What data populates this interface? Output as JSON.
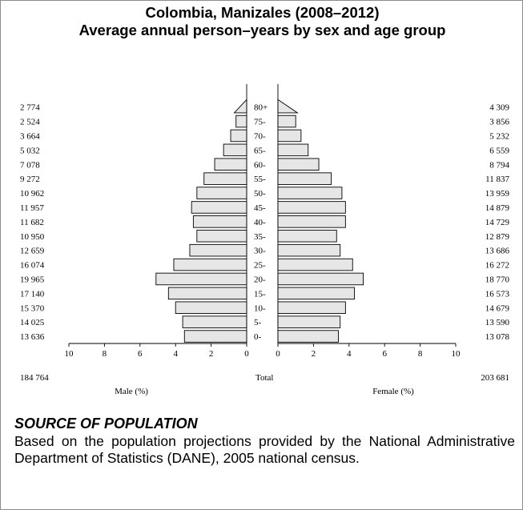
{
  "chart_data": {
    "type": "bar",
    "subtype": "population-pyramid",
    "title": "Colombia, Manizales (2008–2012)",
    "subtitle": "Average annual person–years by sex and age group",
    "age_groups": [
      "0-",
      "5-",
      "10-",
      "15-",
      "20-",
      "25-",
      "30-",
      "35-",
      "40-",
      "45-",
      "50-",
      "55-",
      "60-",
      "65-",
      "70-",
      "75-",
      "80+"
    ],
    "male": {
      "label": "Male (%)",
      "counts": [
        "13 636",
        "14 025",
        "15 370",
        "17 140",
        "19 965",
        "16 074",
        "12 659",
        "10 950",
        "11 682",
        "11 957",
        "10 962",
        "9 272",
        "7 078",
        "5 032",
        "3 664",
        "2 524",
        "2 774"
      ],
      "percent": [
        3.5,
        3.6,
        4.0,
        4.4,
        5.1,
        4.1,
        3.2,
        2.8,
        3.0,
        3.1,
        2.8,
        2.4,
        1.8,
        1.3,
        0.9,
        0.6,
        0.7
      ]
    },
    "female": {
      "label": "Female (%)",
      "counts": [
        "13 078",
        "13 590",
        "14 679",
        "16 573",
        "18 770",
        "16 272",
        "13 686",
        "12 879",
        "14 729",
        "14 879",
        "13 959",
        "11 837",
        "8 794",
        "6 559",
        "5 232",
        "3 856",
        "4 309"
      ],
      "percent": [
        3.4,
        3.5,
        3.8,
        4.3,
        4.8,
        4.2,
        3.5,
        3.3,
        3.8,
        3.8,
        3.6,
        3.0,
        2.3,
        1.7,
        1.3,
        1.0,
        1.1
      ]
    },
    "x_ticks": [
      "10",
      "8",
      "6",
      "4",
      "2",
      "0"
    ],
    "xlim": [
      0,
      10
    ],
    "total_label": "Total",
    "male_total": "184 764",
    "female_total": "203 681",
    "bar_fill": "#e6e6e6",
    "bar_stroke": "#000000",
    "grid": false
  },
  "source": {
    "heading": "SOURCE OF POPULATION",
    "text": "Based on the population projections provided by the National Administrative Department of Statistics (DANE), 2005 national census."
  }
}
